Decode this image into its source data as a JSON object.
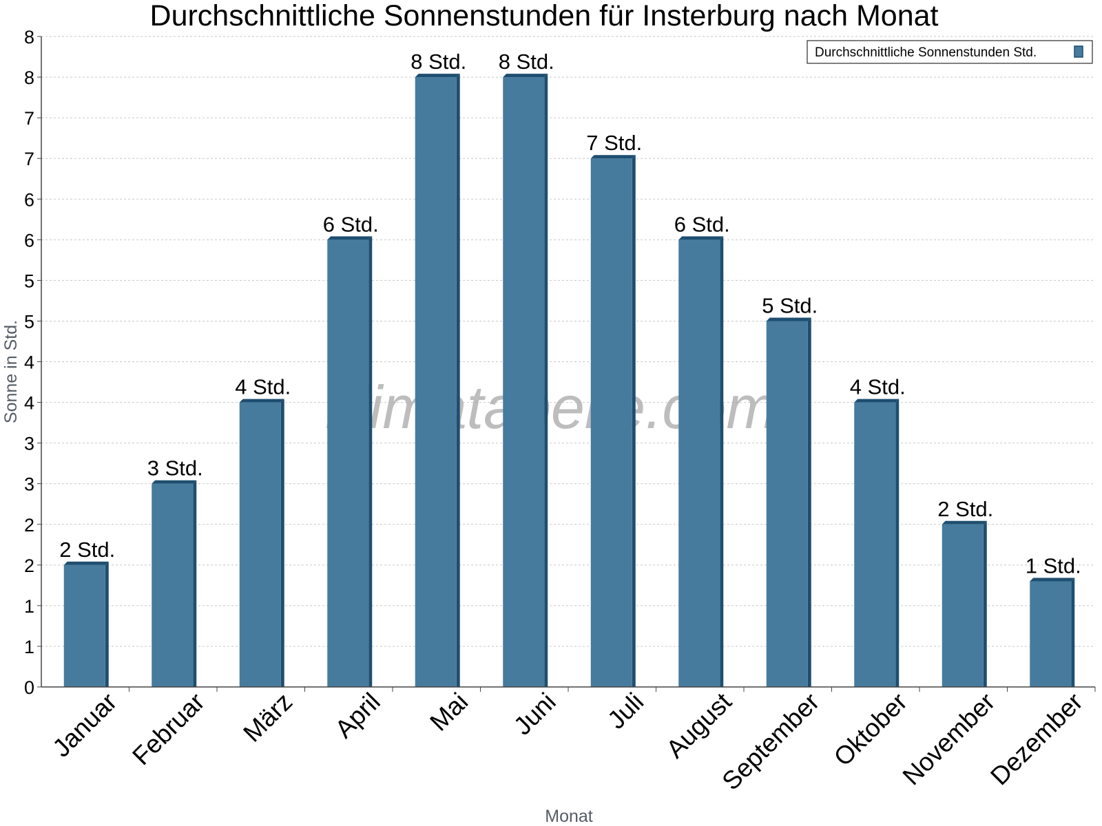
{
  "chart_data": {
    "type": "bar",
    "title": "Durchschnittliche Sonnenstunden für Insterburg nach Monat",
    "xlabel": "Monat",
    "ylabel": "Sonne in Std.",
    "ylim": [
      0,
      8
    ],
    "yticks": [
      "0",
      "1",
      "1",
      "2",
      "2",
      "3",
      "3",
      "4",
      "4",
      "5",
      "5",
      "6",
      "6",
      "7",
      "7",
      "8",
      "8"
    ],
    "grid": true,
    "legend_position": "top-right",
    "categories": [
      "Januar",
      "Februar",
      "März",
      "April",
      "Mai",
      "Juni",
      "Juli",
      "August",
      "September",
      "Oktober",
      "November",
      "Dezember"
    ],
    "series": [
      {
        "name": "Durchschnittliche Sonnenstunden Std.",
        "color": "#467b9e",
        "values": [
          1.5,
          2.5,
          3.5,
          5.5,
          7.5,
          7.5,
          6.5,
          5.5,
          4.5,
          3.5,
          2.0,
          1.3
        ],
        "labels": [
          "2 Std.",
          "3 Std.",
          "4 Std.",
          "6 Std.",
          "8 Std.",
          "8 Std.",
          "7 Std.",
          "6 Std.",
          "5 Std.",
          "4 Std.",
          "2 Std.",
          "1 Std."
        ]
      }
    ],
    "watermark": "klimatabelle.com"
  }
}
